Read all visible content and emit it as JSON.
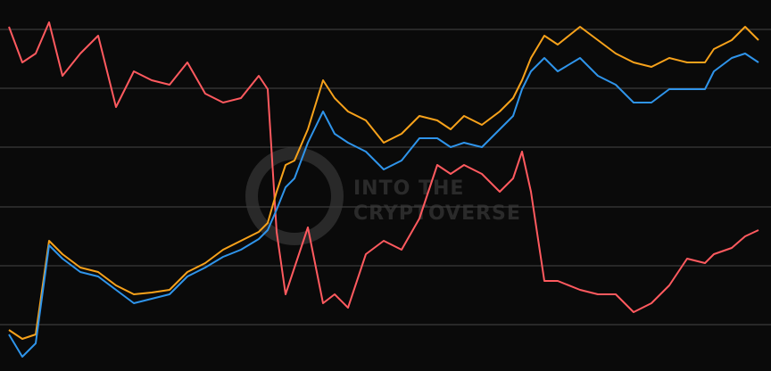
{
  "chart_data": {
    "type": "line",
    "watermark": [
      "INTO THE",
      "CRYPTOVERSE"
    ],
    "x": [
      0,
      15,
      30,
      45,
      60,
      80,
      100,
      120,
      140,
      160,
      180,
      200,
      220,
      240,
      260,
      280,
      290,
      300,
      310,
      320,
      335,
      352,
      365,
      380,
      400,
      420,
      440,
      460,
      480,
      495,
      510,
      530,
      550,
      565,
      575,
      585,
      600,
      615,
      640,
      660,
      680,
      700,
      720,
      740,
      760,
      780,
      790,
      810,
      825,
      840
    ],
    "xlim": [
      0,
      844
    ],
    "ylim": [
      -52,
      364
    ],
    "yticks": [
      0,
      66,
      132,
      199,
      265,
      331
    ],
    "grid": true,
    "series": [
      {
        "color": "#ff5a5f",
        "values": [
          334,
          294,
          304,
          339,
          279,
          304,
          324,
          244,
          284,
          274,
          269,
          294,
          259,
          249,
          254,
          279,
          264,
          104,
          34,
          64,
          109,
          24,
          34,
          19,
          79,
          94,
          84,
          119,
          179,
          169,
          179,
          169,
          149,
          164,
          194,
          149,
          49,
          49,
          39,
          34,
          34,
          14,
          24,
          44,
          74,
          69,
          79,
          86,
          99,
          106
        ]
      },
      {
        "color": "#f7a21b",
        "values": [
          -6,
          -16,
          -11,
          94,
          79,
          64,
          59,
          44,
          34,
          36,
          39,
          59,
          69,
          84,
          94,
          104,
          114,
          149,
          179,
          184,
          219,
          274,
          254,
          239,
          229,
          204,
          214,
          234,
          229,
          219,
          234,
          224,
          239,
          254,
          274,
          299,
          324,
          314,
          334,
          319,
          304,
          294,
          289,
          299,
          294,
          294,
          309,
          319,
          334,
          319
        ]
      },
      {
        "color": "#2f94ea",
        "values": [
          -11,
          -36,
          -21,
          89,
          74,
          59,
          54,
          39,
          24,
          29,
          34,
          54,
          64,
          76,
          84,
          96,
          106,
          129,
          154,
          164,
          204,
          239,
          214,
          204,
          194,
          174,
          184,
          209,
          209,
          199,
          204,
          199,
          219,
          234,
          264,
          284,
          299,
          284,
          299,
          279,
          269,
          249,
          249,
          264,
          264,
          264,
          284,
          299,
          304,
          294
        ]
      }
    ]
  }
}
